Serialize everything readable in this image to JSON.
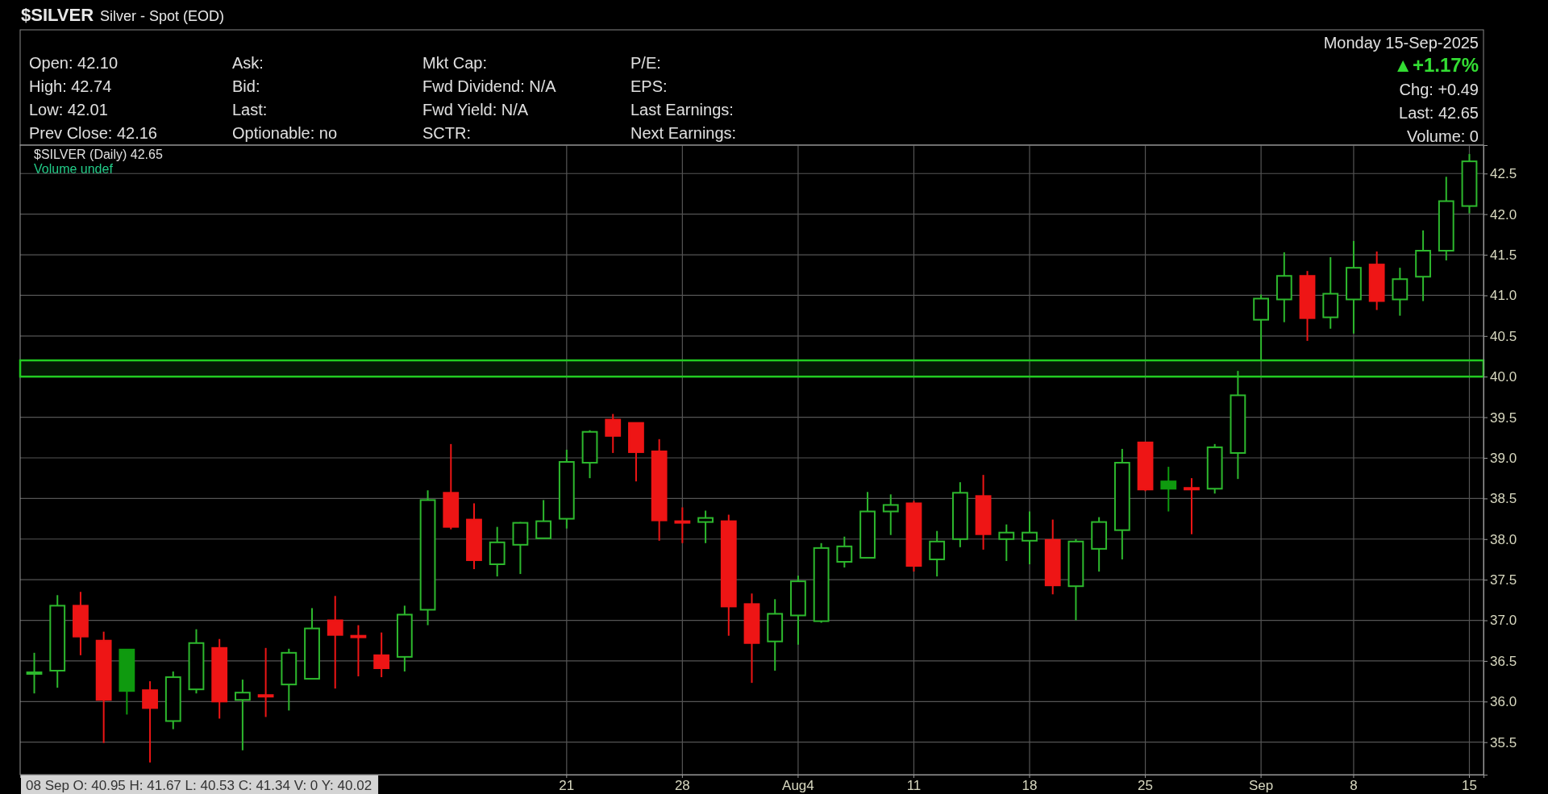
{
  "chart_data": {
    "type": "candlestick",
    "title": "$SILVER",
    "subtitle": "Silver - Spot (EOD)",
    "categories": [
      null,
      null,
      null,
      null,
      null,
      null,
      null,
      null,
      null,
      null,
      null,
      null,
      null,
      null,
      null,
      null,
      null,
      null,
      null,
      null,
      null,
      null,
      null,
      "21",
      null,
      null,
      null,
      null,
      "28",
      null,
      null,
      null,
      null,
      "Aug4",
      null,
      null,
      null,
      null,
      "11",
      null,
      null,
      null,
      null,
      "18",
      null,
      null,
      null,
      null,
      "25",
      null,
      null,
      null,
      null,
      "Sep",
      null,
      null,
      null,
      "8",
      null,
      null,
      null,
      null,
      "15"
    ],
    "ohlc": [
      [
        36.35,
        36.6,
        36.1,
        36.36
      ],
      [
        36.38,
        37.31,
        36.17,
        37.18
      ],
      [
        37.18,
        37.35,
        36.57,
        36.8
      ],
      [
        36.75,
        36.86,
        35.49,
        36.02
      ],
      [
        36.64,
        36.64,
        35.84,
        36.13
      ],
      [
        36.14,
        36.25,
        35.25,
        35.92
      ],
      [
        35.76,
        36.37,
        35.66,
        36.3
      ],
      [
        36.15,
        36.89,
        36.1,
        36.72
      ],
      [
        36.66,
        36.77,
        35.79,
        36.0
      ],
      [
        36.02,
        36.27,
        35.4,
        36.11
      ],
      [
        36.08,
        36.66,
        35.81,
        36.07
      ],
      [
        36.21,
        36.65,
        35.89,
        36.6
      ],
      [
        36.28,
        37.15,
        36.28,
        36.9
      ],
      [
        37.0,
        37.3,
        36.16,
        36.82
      ],
      [
        36.81,
        36.94,
        36.31,
        36.8
      ],
      [
        36.57,
        36.85,
        36.3,
        36.41
      ],
      [
        36.55,
        37.18,
        36.37,
        37.07
      ],
      [
        37.13,
        38.6,
        36.94,
        38.48
      ],
      [
        38.57,
        39.17,
        38.12,
        38.15
      ],
      [
        38.24,
        38.44,
        37.63,
        37.74
      ],
      [
        37.69,
        38.15,
        37.54,
        37.96
      ],
      [
        37.93,
        38.21,
        37.57,
        38.2
      ],
      [
        38.01,
        38.48,
        38.01,
        38.22
      ],
      [
        38.25,
        39.1,
        38.13,
        38.95
      ],
      [
        38.94,
        39.34,
        38.75,
        39.32
      ],
      [
        39.47,
        39.54,
        39.06,
        39.27
      ],
      [
        39.43,
        39.43,
        38.71,
        39.07
      ],
      [
        39.08,
        39.23,
        37.98,
        38.23
      ],
      [
        38.22,
        38.39,
        37.95,
        38.21
      ],
      [
        38.21,
        38.35,
        37.95,
        38.26
      ],
      [
        38.22,
        38.3,
        36.81,
        37.17
      ],
      [
        37.2,
        37.33,
        36.23,
        36.72
      ],
      [
        36.74,
        37.26,
        36.38,
        37.08
      ],
      [
        37.06,
        37.55,
        36.7,
        37.48
      ],
      [
        36.99,
        37.95,
        36.97,
        37.89
      ],
      [
        37.72,
        38.03,
        37.65,
        37.91
      ],
      [
        37.77,
        38.58,
        37.77,
        38.34
      ],
      [
        38.34,
        38.55,
        38.05,
        38.42
      ],
      [
        38.44,
        38.47,
        37.6,
        37.67
      ],
      [
        37.75,
        38.1,
        37.54,
        37.97
      ],
      [
        38.0,
        38.7,
        37.9,
        38.57
      ],
      [
        38.53,
        38.79,
        37.87,
        38.06
      ],
      [
        38.0,
        38.18,
        37.73,
        38.08
      ],
      [
        37.98,
        38.34,
        37.69,
        38.08
      ],
      [
        37.99,
        38.24,
        37.32,
        37.43
      ],
      [
        37.42,
        38.0,
        37.0,
        37.97
      ],
      [
        37.88,
        38.27,
        37.6,
        38.21
      ],
      [
        38.11,
        39.11,
        37.75,
        38.94
      ],
      [
        39.19,
        39.19,
        38.59,
        38.61
      ],
      [
        38.71,
        38.89,
        38.34,
        38.62
      ],
      [
        38.63,
        38.75,
        38.06,
        38.62
      ],
      [
        38.62,
        39.17,
        38.56,
        39.13
      ],
      [
        39.06,
        40.07,
        38.74,
        39.77
      ],
      [
        40.7,
        41.01,
        40.2,
        40.96
      ],
      [
        40.95,
        41.53,
        40.67,
        41.24
      ],
      [
        41.24,
        41.3,
        40.44,
        40.72
      ],
      [
        40.73,
        41.47,
        40.59,
        41.02
      ],
      [
        40.95,
        41.67,
        40.53,
        41.34
      ],
      [
        41.38,
        41.54,
        40.82,
        40.93
      ],
      [
        40.95,
        41.34,
        40.75,
        41.2
      ],
      [
        41.23,
        41.8,
        40.93,
        41.55
      ],
      [
        41.55,
        42.46,
        41.43,
        42.16
      ],
      [
        42.1,
        42.74,
        42.01,
        42.65
      ]
    ],
    "colors": [
      "#2db82d",
      "#2db82d",
      "#ee1515",
      "#ee1515",
      "#0f9a0f",
      "#ee1515",
      "#2db82d",
      "#2db82d",
      "#ee1515",
      "#2db82d",
      "#ee1515",
      "#2db82d",
      "#2db82d",
      "#ee1515",
      "#ee1515",
      "#ee1515",
      "#2db82d",
      "#2db82d",
      "#ee1515",
      "#ee1515",
      "#2db82d",
      "#2db82d",
      "#2db82d",
      "#2db82d",
      "#2db82d",
      "#ee1515",
      "#ee1515",
      "#ee1515",
      "#ee1515",
      "#2db82d",
      "#ee1515",
      "#ee1515",
      "#2db82d",
      "#2db82d",
      "#2db82d",
      "#2db82d",
      "#2db82d",
      "#2db82d",
      "#ee1515",
      "#2db82d",
      "#2db82d",
      "#ee1515",
      "#2db82d",
      "#2db82d",
      "#ee1515",
      "#2db82d",
      "#2db82d",
      "#2db82d",
      "#ee1515",
      "#0f9a0f",
      "#ee1515",
      "#2db82d",
      "#2db82d",
      "#2db82d",
      "#2db82d",
      "#ee1515",
      "#2db82d",
      "#2db82d",
      "#ee1515",
      "#2db82d",
      "#2db82d",
      "#2db82d",
      "#2db82d"
    ],
    "ylim": [
      35.1,
      42.85
    ],
    "yticks": [
      35.5,
      {
        "value": 36,
        "label": "36.0"
      },
      36.5,
      {
        "value": 37,
        "label": "37.0"
      },
      37.5,
      {
        "value": 38,
        "label": "38.0"
      },
      38.5,
      {
        "value": 39,
        "label": "39.0"
      },
      39.5,
      {
        "value": 40,
        "label": "40.0"
      },
      40.5,
      {
        "value": 41,
        "label": "41.0"
      },
      41.5,
      {
        "value": 42,
        "label": "42.0"
      },
      42.5
    ],
    "grid": true,
    "bands": [
      {
        "axis": "y",
        "from": 40.0,
        "to": 40.2,
        "color": "#22cc22"
      }
    ],
    "annotations": [
      "Open: 42.10",
      "High: 42.74",
      "Low: 42.01",
      "Prev Close: 42.16",
      "Ask:",
      "Bid:",
      "Last:",
      "Optionable: no",
      "Mkt Cap:",
      "Fwd Dividend: N/A",
      "Fwd Yield: N/A",
      "SCTR:",
      "P/E:",
      "EPS:",
      "Last Earnings:",
      "Next Earnings:",
      "Monday 15-Sep-2025",
      "▲+1.17%",
      "Chg: +0.49",
      "Last: 42.65",
      "Volume: 0",
      "$SILVER (Daily) 42.65",
      "Volume undef",
      "08 Sep O: 40.95   H: 41.67   L: 40.53   C: 41.34   V: 0   Y: 40.02"
    ]
  }
}
